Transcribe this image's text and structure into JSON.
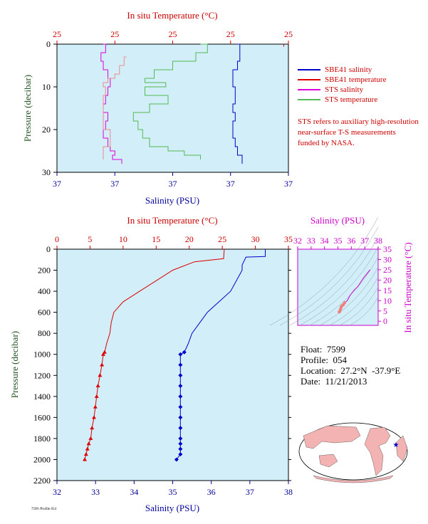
{
  "colors": {
    "panel_bg": "#d1eef9",
    "salinity": "#0000cc",
    "temperature": "#dd0000",
    "sts_salinity": "#dd00dd",
    "sts_temperature": "#55bb55",
    "temp_axis_title": "#cc0000",
    "sal_axis_title": "#000099",
    "pressure_axis_title": "#225522"
  },
  "legend": [
    {
      "label": "SBE41 salinity",
      "color": "#0000cc"
    },
    {
      "label": "SBE41 temperature",
      "color": "#dd0000"
    },
    {
      "label": "STS salinity",
      "color": "#dd00dd"
    },
    {
      "label": "STS temperature",
      "color": "#55bb55"
    }
  ],
  "note": "STS refers to auxiliary high-resolution near-surface T-S measurements funded by NASA.",
  "float_info": {
    "float": "Float:  7599",
    "profile": "Profile:  054",
    "location": "Location:  27.2°N  -37.9°E",
    "date": "Date:  11/21/2013"
  },
  "footer": "7599 /Profile 054",
  "chart_data": [
    {
      "id": "upper",
      "type": "line",
      "title": "In situ Temperature (°C)",
      "xlabel": "Salinity (PSU)",
      "ylabel": "Pressure (decibar)",
      "top_ticks": [
        "25",
        "25",
        "25",
        "25",
        "25"
      ],
      "bottom_ticks": [
        "37",
        "37",
        "37",
        "37",
        "37"
      ],
      "ylim": [
        30,
        0
      ],
      "y_ticks": [
        "0",
        "10",
        "20",
        "30"
      ],
      "note": "tick labels repeat because of a very narrow axis range",
      "series": [
        {
          "name": "SBE41 salinity",
          "x_frac": [
            0.78,
            0.79,
            0.79,
            0.78,
            0.76,
            0.76,
            0.77,
            0.77,
            0.76,
            0.77,
            0.76,
            0.76,
            0.77,
            0.78,
            0.8
          ],
          "y": [
            0,
            2,
            4,
            6,
            8,
            10,
            12,
            14,
            16,
            18,
            20,
            22,
            24,
            26,
            28
          ]
        },
        {
          "name": "SBE41 temperature",
          "x_frac": [
            0.98,
            0.98,
            0.98
          ],
          "y": [
            0,
            0.3,
            0.6
          ]
        },
        {
          "name": "STS salinity",
          "x_frac": [
            0.2,
            0.21,
            0.19,
            0.2,
            0.22,
            0.23,
            0.22,
            0.21,
            0.2,
            0.22,
            0.21,
            0.2,
            0.22,
            0.23,
            0.25,
            0.24,
            0.28
          ],
          "y": [
            0,
            2,
            4,
            6,
            8,
            10,
            12,
            14,
            16,
            18,
            20,
            22,
            24,
            25,
            26,
            27,
            28
          ]
        },
        {
          "name": "STS temperature",
          "x_frac": [
            0.62,
            0.65,
            0.6,
            0.5,
            0.42,
            0.38,
            0.47,
            0.38,
            0.48,
            0.4,
            0.33,
            0.35,
            0.37,
            0.4,
            0.48,
            0.55,
            0.62
          ],
          "y": [
            0,
            2,
            4,
            6,
            8,
            9,
            10,
            12,
            14,
            16,
            18,
            20,
            22,
            24,
            25,
            26,
            27
          ]
        },
        {
          "name": "STS temperature (low-res)",
          "x_frac": [
            0.3,
            0.29,
            0.27,
            0.25,
            0.22,
            0.2,
            0.21,
            0.2,
            0.2,
            0.23,
            0.2
          ],
          "y": [
            3,
            5,
            7,
            8,
            9,
            10,
            12,
            16,
            20,
            24,
            27
          ]
        }
      ]
    },
    {
      "id": "main",
      "type": "line",
      "title": "In situ Temperature (°C)",
      "xlabel": "Salinity (PSU)",
      "ylabel": "Pressure (decibar)",
      "top_axis": {
        "range": [
          0,
          35
        ],
        "ticks": [
          "0",
          "5",
          "10",
          "15",
          "20",
          "25",
          "30",
          "35"
        ]
      },
      "bottom_axis": {
        "range": [
          32,
          38
        ],
        "ticks": [
          "32",
          "33",
          "34",
          "35",
          "36",
          "37",
          "38"
        ]
      },
      "ylim": [
        2200,
        0
      ],
      "y_ticks": [
        "0",
        "200",
        "400",
        "600",
        "800",
        "1000",
        "1200",
        "1400",
        "1600",
        "1800",
        "2000",
        "2200"
      ],
      "series": [
        {
          "name": "SBE41 temperature",
          "x": [
            25.3,
            25.2,
            20.8,
            17.5,
            15.0,
            12.5,
            10.0,
            8.6,
            8.2,
            8.0,
            7.5,
            7.2,
            7.0,
            6.8,
            6.5,
            6.2,
            6.0,
            5.8,
            5.6,
            5.3,
            5.1,
            4.8,
            4.6,
            4.4,
            4.2
          ],
          "y": [
            0,
            90,
            120,
            200,
            300,
            400,
            500,
            600,
            700,
            800,
            900,
            980,
            1000,
            1100,
            1200,
            1300,
            1400,
            1500,
            1600,
            1700,
            1800,
            1850,
            1900,
            1950,
            2000
          ]
        },
        {
          "name": "SBE41 salinity",
          "x": [
            37.4,
            37.4,
            36.9,
            36.8,
            36.8,
            36.5,
            36.2,
            35.9,
            35.7,
            35.5,
            35.4,
            35.3,
            35.2,
            35.2,
            35.2,
            35.2,
            35.2,
            35.2,
            35.2,
            35.2,
            35.2,
            35.2,
            35.2,
            35.2,
            35.1
          ],
          "y": [
            0,
            70,
            75,
            150,
            200,
            400,
            500,
            600,
            700,
            800,
            900,
            980,
            1000,
            1100,
            1200,
            1300,
            1400,
            1500,
            1600,
            1700,
            1800,
            1850,
            1900,
            1950,
            2000
          ]
        }
      ]
    },
    {
      "id": "ts",
      "type": "scatter",
      "title": "Salinity (PSU)",
      "ylabel": "In situ Temperature (°C)",
      "top_axis": {
        "range": [
          32,
          38
        ],
        "ticks": [
          "32",
          "33",
          "34",
          "35",
          "36",
          "37",
          "38"
        ]
      },
      "right_axis": {
        "range": [
          -2,
          35
        ],
        "ticks": [
          "0",
          "5",
          "10",
          "15",
          "20",
          "25",
          "30",
          "35"
        ]
      },
      "series": [
        {
          "name": "T-S",
          "x": [
            37.4,
            36.9,
            36.5,
            36.2,
            35.9,
            35.7,
            35.5,
            35.4,
            35.3,
            35.25,
            35.2,
            35.15,
            35.1
          ],
          "y": [
            25,
            21,
            17,
            15,
            12.5,
            10,
            9,
            8,
            7.5,
            7,
            6,
            5,
            4.5
          ]
        }
      ]
    }
  ]
}
